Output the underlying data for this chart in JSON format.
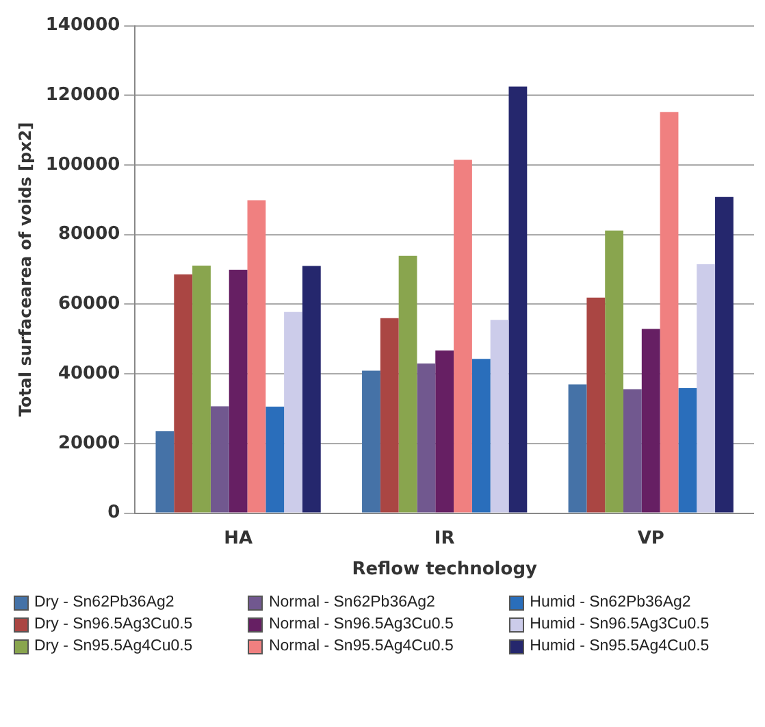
{
  "chart_data": {
    "type": "bar",
    "xlabel": "Reflow technology",
    "ylabel": "Total surfacearea of voids [px2]",
    "categories": [
      "HA",
      "IR",
      "VP"
    ],
    "series": [
      {
        "name": "Dry - Sn62Pb36Ag2",
        "color": "#4572a7",
        "values": [
          23500,
          40900,
          37000
        ]
      },
      {
        "name": "Dry - Sn96.5Ag3Cu0.5",
        "color": "#aa4643",
        "values": [
          68600,
          56000,
          61900
        ]
      },
      {
        "name": "Dry - Sn95.5Ag4Cu0.5",
        "color": "#89a54e",
        "values": [
          71100,
          73900,
          81200
        ]
      },
      {
        "name": "Normal - Sn62Pb36Ag2",
        "color": "#71588f",
        "values": [
          30700,
          43000,
          35600
        ]
      },
      {
        "name": "Normal - Sn96.5Ag3Cu0.5",
        "color": "#661f63",
        "values": [
          69900,
          46700,
          52900
        ]
      },
      {
        "name": "Normal - Sn95.5Ag4Cu0.5",
        "color": "#f08080",
        "values": [
          89900,
          101500,
          115200
        ]
      },
      {
        "name": "Humid - Sn62Pb36Ag2",
        "color": "#2a6ebb",
        "values": [
          30600,
          44300,
          35900
        ]
      },
      {
        "name": "Humid - Sn96.5Ag3Cu0.5",
        "color": "#ccccea",
        "values": [
          57800,
          55500,
          71500
        ]
      },
      {
        "name": "Humid - Sn95.5Ag4Cu0.5",
        "color": "#25276d",
        "values": [
          71000,
          122500,
          90800
        ]
      }
    ],
    "ylim": [
      0,
      140000
    ],
    "yticks": [
      0,
      20000,
      40000,
      60000,
      80000,
      100000,
      120000,
      140000
    ],
    "grid": "y",
    "legend": "bottom"
  }
}
